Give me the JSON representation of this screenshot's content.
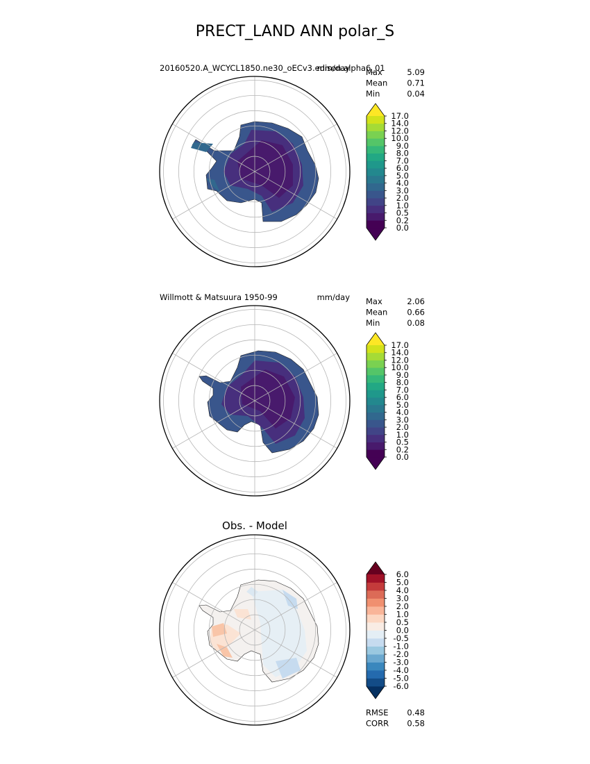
{
  "title": "PRECT_LAND ANN polar_S",
  "chart_data": [
    {
      "type": "heatmap",
      "projection": "south-polar-stereographic",
      "subtitle_left": "20160520.A_WCYCL1850.ne30_oECv3.edison.alpha6_01",
      "subtitle_right": "mm/day",
      "stats": [
        {
          "label": "Max",
          "value": "5.09"
        },
        {
          "label": "Mean",
          "value": "0.71"
        },
        {
          "label": "Min",
          "value": "0.04"
        }
      ],
      "colorbar": {
        "levels": [
          0,
          0.2,
          0.5,
          1,
          2,
          3,
          4,
          5,
          6,
          7,
          8,
          9,
          10,
          12,
          14,
          17
        ],
        "tick_labels": [
          "0.0",
          "0.2",
          "0.5",
          "1.0",
          "2.0",
          "3.0",
          "4.0",
          "5.0",
          "6.0",
          "7.0",
          "8.0",
          "9.0",
          "10.0",
          "12.0",
          "14.0",
          "17.0"
        ],
        "colors": [
          "#440154",
          "#481a6c",
          "#472f7d",
          "#414487",
          "#39568c",
          "#31688e",
          "#2a788e",
          "#23888e",
          "#1f988b",
          "#22a884",
          "#35b779",
          "#54c568",
          "#7ad151",
          "#a5db36",
          "#d2e21b"
        ],
        "under_color": "#440154",
        "over_color": "#fde725",
        "extend": "both"
      }
    },
    {
      "type": "heatmap",
      "projection": "south-polar-stereographic",
      "subtitle_left": "Willmott & Matsuura 1950-99",
      "subtitle_right": "mm/day",
      "stats": [
        {
          "label": "Max",
          "value": "2.06"
        },
        {
          "label": "Mean",
          "value": "0.66"
        },
        {
          "label": "Min",
          "value": "0.08"
        }
      ],
      "colorbar": {
        "levels": [
          0,
          0.2,
          0.5,
          1,
          2,
          3,
          4,
          5,
          6,
          7,
          8,
          9,
          10,
          12,
          14,
          17
        ],
        "tick_labels": [
          "0.0",
          "0.2",
          "0.5",
          "1.0",
          "2.0",
          "3.0",
          "4.0",
          "5.0",
          "6.0",
          "7.0",
          "8.0",
          "9.0",
          "10.0",
          "12.0",
          "14.0",
          "17.0"
        ],
        "colors": [
          "#440154",
          "#481a6c",
          "#472f7d",
          "#414487",
          "#39568c",
          "#31688e",
          "#2a788e",
          "#23888e",
          "#1f988b",
          "#22a884",
          "#35b779",
          "#54c568",
          "#7ad151",
          "#a5db36",
          "#d2e21b"
        ],
        "under_color": "#440154",
        "over_color": "#fde725",
        "extend": "both"
      }
    },
    {
      "type": "heatmap",
      "projection": "south-polar-stereographic",
      "title": "Obs. - Model",
      "stats": [
        {
          "label": "RMSE",
          "value": "0.48"
        },
        {
          "label": "CORR",
          "value": "0.58"
        }
      ],
      "colorbar": {
        "levels": [
          -6,
          -5,
          -4,
          -3,
          -2,
          -1,
          -0.5,
          0,
          0.5,
          1,
          2,
          3,
          4,
          5,
          6
        ],
        "tick_labels": [
          "-6.0",
          "-5.0",
          "-4.0",
          "-3.0",
          "-2.0",
          "-1.0",
          "-0.5",
          "0.0",
          "0.5",
          "1.0",
          "2.0",
          "3.0",
          "4.0",
          "5.0",
          "6.0"
        ],
        "colors": [
          "#134c87",
          "#246aae",
          "#3a87bd",
          "#6ba8cf",
          "#9ac8e0",
          "#c6dbef",
          "#e4eef5",
          "#f9ece4",
          "#fcd7c2",
          "#f9b599",
          "#f09070",
          "#dc6b57",
          "#c43b3b",
          "#a11228"
        ],
        "under_color": "#053061",
        "over_color": "#67001f",
        "extend": "both"
      }
    }
  ]
}
